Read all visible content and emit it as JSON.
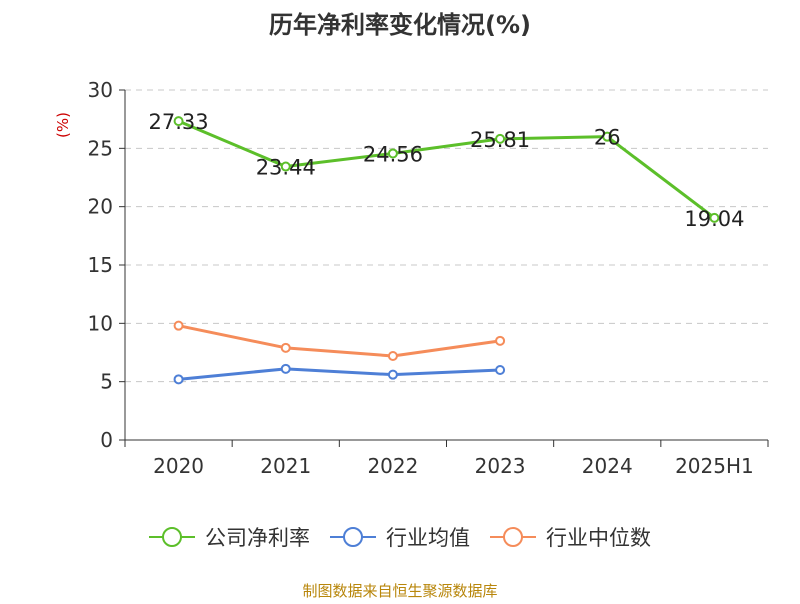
{
  "chart_data": {
    "type": "line",
    "title": "历年净利率变化情况(%)",
    "ylabel": "(%)",
    "xlabel": "",
    "categories": [
      "2020",
      "2021",
      "2022",
      "2023",
      "2024",
      "2025H1"
    ],
    "ylim": [
      0,
      30
    ],
    "yticks": [
      0,
      5,
      10,
      15,
      20,
      25,
      30
    ],
    "grid": true,
    "legend_position": "bottom",
    "series": [
      {
        "name": "公司净利率",
        "color": "#5cbf2a",
        "values": [
          27.33,
          23.44,
          24.56,
          25.81,
          26,
          19.04
        ],
        "labels": [
          "27.33",
          "23.44",
          "24.56",
          "25.81",
          "26",
          "19.04"
        ]
      },
      {
        "name": "行业均值",
        "color": "#4e7fd6",
        "values": [
          5.2,
          6.1,
          5.6,
          6.0,
          null,
          null
        ]
      },
      {
        "name": "行业中位数",
        "color": "#f58c5a",
        "values": [
          9.8,
          7.9,
          7.2,
          8.5,
          null,
          null
        ]
      }
    ],
    "source": "制图数据来自恒生聚源数据库"
  }
}
